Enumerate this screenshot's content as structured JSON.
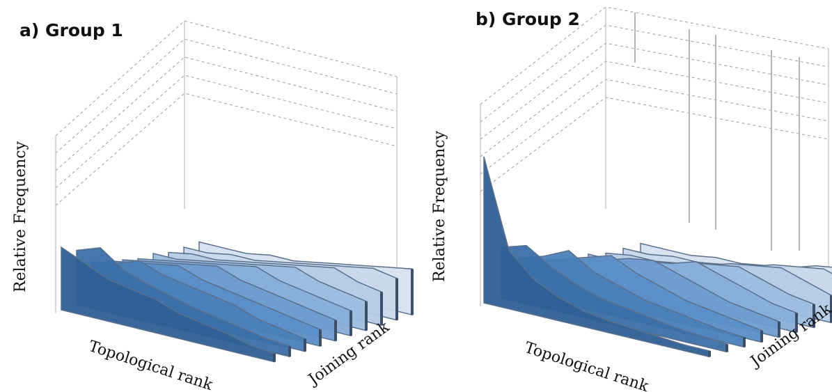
{
  "chart_data": [
    {
      "type": "area",
      "title": "a) Group 1",
      "xlabel": "Topological rank",
      "ylabel": "Relative Frequency",
      "zlabel": "Joining rank",
      "colors": [
        "#2f5f95",
        "#3a6ea6",
        "#4a7fb8",
        "#5b8ec6",
        "#6f9ccf",
        "#86aed8",
        "#9dbde0",
        "#b4cce6",
        "#c8d8ec",
        "#d6e2f0"
      ],
      "series": [
        {
          "values": [
            0.3,
            0.25,
            0.2,
            0.18,
            0.16,
            0.12,
            0.1,
            0.08,
            0.05,
            0.04
          ]
        },
        {
          "values": [
            0.26,
            0.3,
            0.22,
            0.18,
            0.15,
            0.12,
            0.1,
            0.08,
            0.06,
            0.05
          ]
        },
        {
          "values": [
            0.18,
            0.2,
            0.24,
            0.2,
            0.18,
            0.16,
            0.14,
            0.1,
            0.08,
            0.06
          ]
        },
        {
          "values": [
            0.16,
            0.18,
            0.2,
            0.22,
            0.18,
            0.16,
            0.14,
            0.12,
            0.1,
            0.08
          ]
        },
        {
          "values": [
            0.14,
            0.16,
            0.18,
            0.2,
            0.22,
            0.18,
            0.16,
            0.14,
            0.12,
            0.1
          ]
        },
        {
          "values": [
            0.12,
            0.14,
            0.16,
            0.18,
            0.2,
            0.22,
            0.18,
            0.16,
            0.14,
            0.12
          ]
        },
        {
          "values": [
            0.12,
            0.12,
            0.14,
            0.16,
            0.18,
            0.2,
            0.22,
            0.18,
            0.16,
            0.14
          ]
        },
        {
          "values": [
            0.1,
            0.12,
            0.12,
            0.14,
            0.16,
            0.18,
            0.2,
            0.22,
            0.18,
            0.16
          ]
        },
        {
          "values": [
            0.1,
            0.1,
            0.12,
            0.12,
            0.14,
            0.16,
            0.18,
            0.2,
            0.22,
            0.2
          ]
        },
        {
          "values": [
            0.1,
            0.1,
            0.1,
            0.12,
            0.12,
            0.14,
            0.16,
            0.18,
            0.2,
            0.22
          ]
        }
      ]
    },
    {
      "type": "area",
      "title": "b) Group 2",
      "xlabel": "Topological rank",
      "ylabel": "Relative Frequency",
      "zlabel": "Joining rank",
      "colors": [
        "#2f5f95",
        "#3a6ea6",
        "#4a7fb8",
        "#5b8ec6",
        "#6f9ccf",
        "#86aed8",
        "#9dbde0",
        "#b4cce6",
        "#c8d8ec",
        "#d6e2f0"
      ],
      "series": [
        {
          "values": [
            0.75,
            0.3,
            0.18,
            0.12,
            0.08,
            0.06,
            0.05,
            0.04,
            0.03,
            0.03
          ]
        },
        {
          "values": [
            0.26,
            0.3,
            0.22,
            0.16,
            0.12,
            0.1,
            0.08,
            0.06,
            0.05,
            0.04
          ]
        },
        {
          "values": [
            0.18,
            0.22,
            0.28,
            0.2,
            0.16,
            0.12,
            0.1,
            0.08,
            0.06,
            0.05
          ]
        },
        {
          "values": [
            0.14,
            0.18,
            0.22,
            0.26,
            0.2,
            0.16,
            0.12,
            0.1,
            0.08,
            0.06
          ]
        },
        {
          "values": [
            0.12,
            0.14,
            0.18,
            0.22,
            0.24,
            0.2,
            0.16,
            0.12,
            0.1,
            0.08
          ]
        },
        {
          "values": [
            0.1,
            0.12,
            0.14,
            0.18,
            0.2,
            0.24,
            0.2,
            0.16,
            0.12,
            0.1
          ]
        },
        {
          "values": [
            0.1,
            0.1,
            0.12,
            0.14,
            0.18,
            0.2,
            0.22,
            0.18,
            0.14,
            0.12
          ]
        },
        {
          "values": [
            0.08,
            0.1,
            0.1,
            0.12,
            0.14,
            0.18,
            0.2,
            0.22,
            0.18,
            0.14
          ]
        },
        {
          "values": [
            0.08,
            0.08,
            0.1,
            0.1,
            0.12,
            0.14,
            0.18,
            0.2,
            0.22,
            0.18
          ]
        },
        {
          "values": [
            0.08,
            0.08,
            0.08,
            0.1,
            0.1,
            0.12,
            0.14,
            0.18,
            0.2,
            0.26
          ]
        }
      ]
    }
  ]
}
